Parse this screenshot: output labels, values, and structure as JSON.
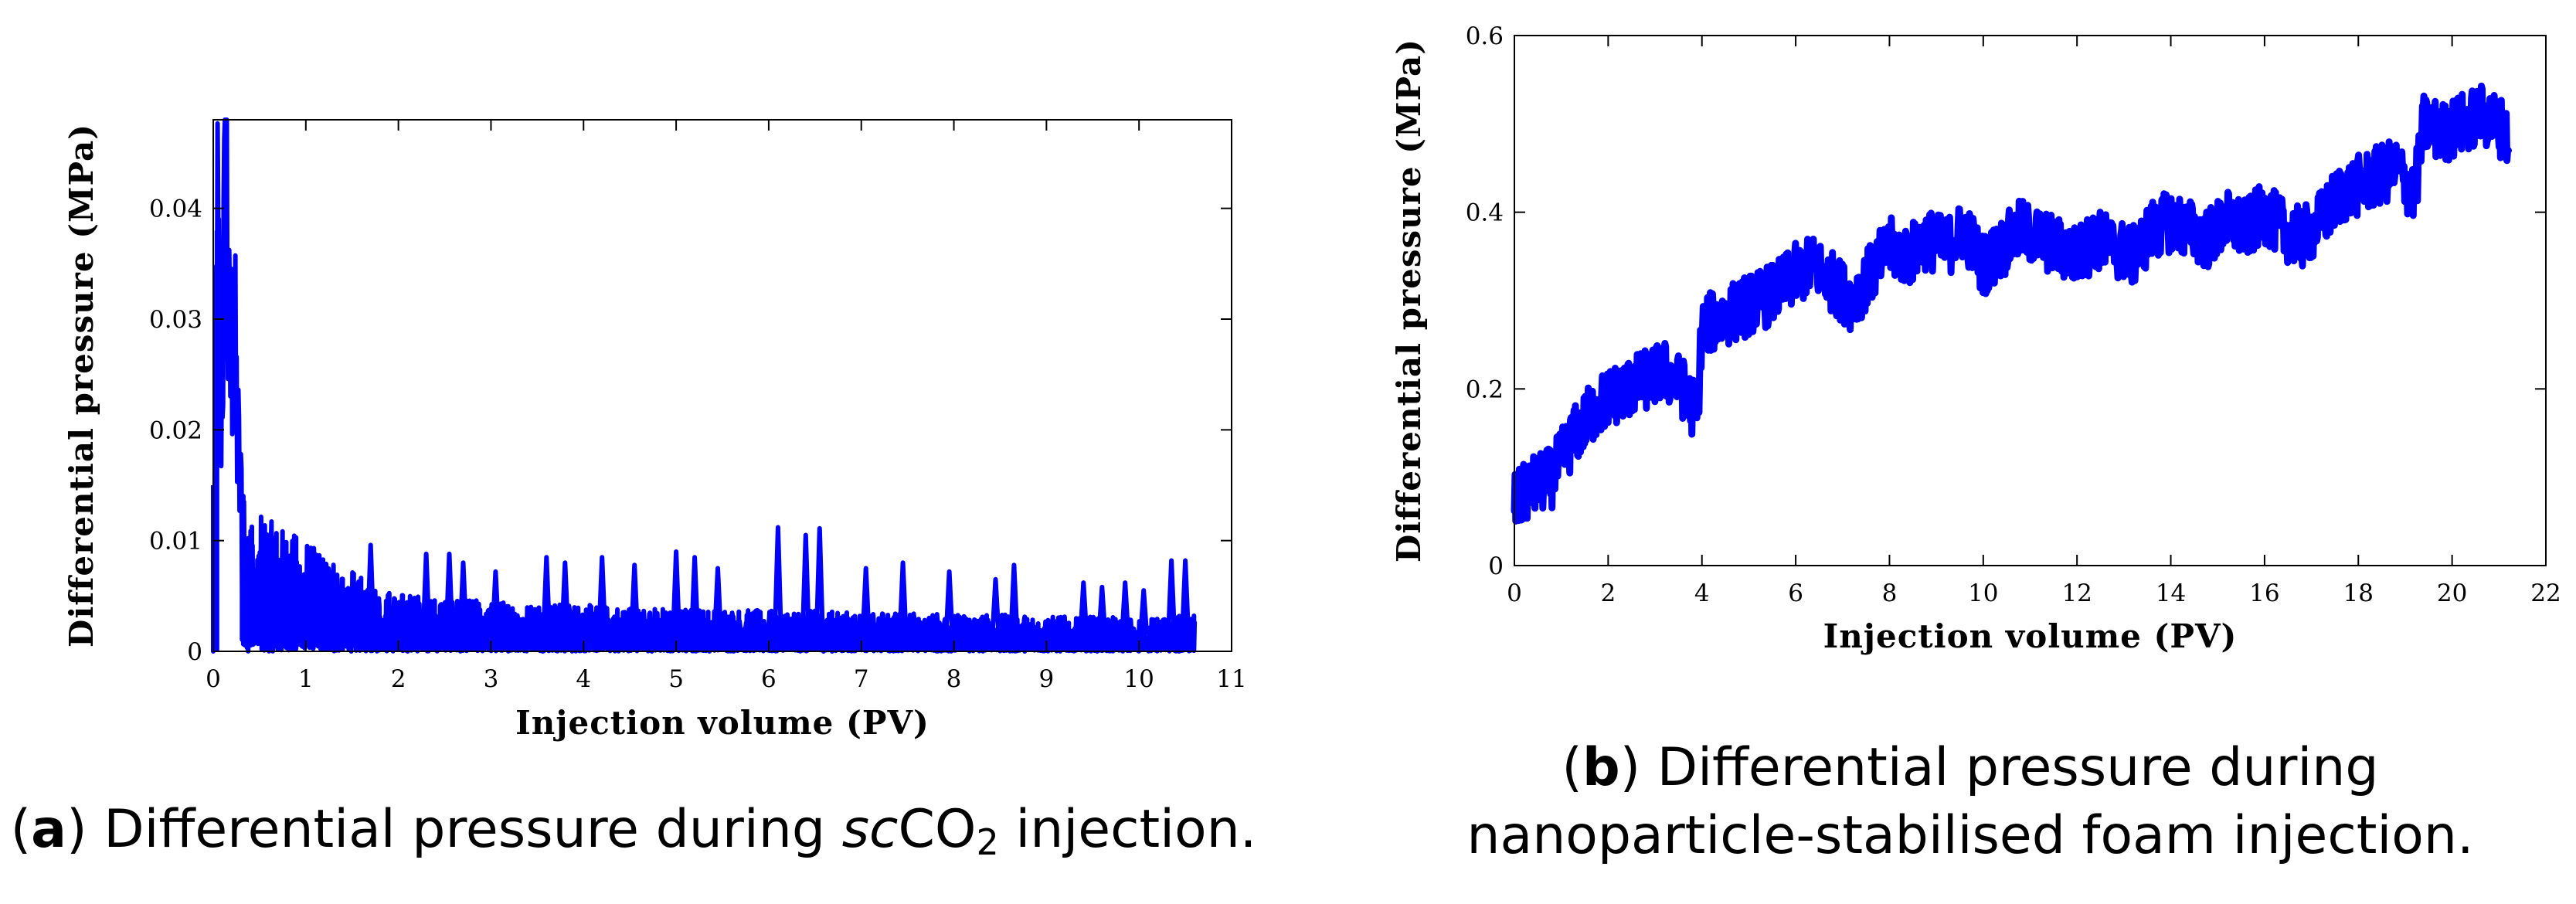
{
  "chart_data": [
    {
      "type": "line",
      "panel": "a",
      "xlabel": "Injection volume (PV)",
      "ylabel": "Differential pressure (MPa)",
      "xlim": [
        0,
        11
      ],
      "ylim": [
        0,
        0.048
      ],
      "xticks": [
        0,
        1,
        2,
        3,
        4,
        5,
        6,
        7,
        8,
        9,
        10,
        11
      ],
      "yticks": [
        0,
        0.01,
        0.02,
        0.03,
        0.04
      ],
      "ytick_labels": [
        "0",
        "0.01",
        "0.02",
        "0.03",
        "0.04"
      ],
      "color": "#0000ff",
      "grid": false,
      "series": [
        {
          "name": "Differential pressure",
          "x": [
            0,
            0.02,
            0.04,
            0.06,
            0.08,
            0.1,
            0.12,
            0.14,
            0.16,
            0.18,
            0.2,
            0.22,
            0.25,
            0.28,
            0.31,
            0.35,
            0.4,
            0.45,
            0.5,
            0.6,
            0.7,
            0.8,
            0.9,
            1.0,
            1.2,
            1.4,
            1.6,
            1.8,
            2.0,
            2.5,
            3.0,
            3.5,
            4.0,
            4.5,
            5.0,
            5.5,
            6.0,
            6.5,
            7.0,
            7.5,
            8.0,
            8.5,
            9.0,
            9.5,
            10.0,
            10.3,
            10.6
          ],
          "y": [
            0,
            0.015,
            0.038,
            0.03,
            0.021,
            0.028,
            0.035,
            0.044,
            0.03,
            0.024,
            0.027,
            0.03,
            0.022,
            0.016,
            0.012,
            0.009,
            0.0075,
            0.0072,
            0.007,
            0.0068,
            0.0065,
            0.0062,
            0.006,
            0.0058,
            0.0052,
            0.0045,
            0.0038,
            0.0032,
            0.003,
            0.0028,
            0.0026,
            0.0025,
            0.0024,
            0.0023,
            0.0022,
            0.0022,
            0.0021,
            0.0021,
            0.002,
            0.002,
            0.0019,
            0.0019,
            0.0018,
            0.0018,
            0.0017,
            0.0017,
            0.002
          ],
          "spikes": [
            {
              "x": 1.7,
              "y": 0.0096
            },
            {
              "x": 2.3,
              "y": 0.0088
            },
            {
              "x": 2.55,
              "y": 0.0088
            },
            {
              "x": 2.7,
              "y": 0.008
            },
            {
              "x": 3.05,
              "y": 0.0072
            },
            {
              "x": 3.6,
              "y": 0.0085
            },
            {
              "x": 3.8,
              "y": 0.008
            },
            {
              "x": 4.2,
              "y": 0.0085
            },
            {
              "x": 4.55,
              "y": 0.0078
            },
            {
              "x": 5.0,
              "y": 0.009
            },
            {
              "x": 5.2,
              "y": 0.0085
            },
            {
              "x": 5.45,
              "y": 0.0075
            },
            {
              "x": 6.1,
              "y": 0.0112
            },
            {
              "x": 6.4,
              "y": 0.0105
            },
            {
              "x": 6.55,
              "y": 0.0111
            },
            {
              "x": 7.05,
              "y": 0.0075
            },
            {
              "x": 7.45,
              "y": 0.008
            },
            {
              "x": 7.95,
              "y": 0.0072
            },
            {
              "x": 8.45,
              "y": 0.0065
            },
            {
              "x": 8.65,
              "y": 0.0078
            },
            {
              "x": 9.4,
              "y": 0.0062
            },
            {
              "x": 9.6,
              "y": 0.0058
            },
            {
              "x": 9.85,
              "y": 0.0062
            },
            {
              "x": 10.05,
              "y": 0.0055
            },
            {
              "x": 10.35,
              "y": 0.0082
            },
            {
              "x": 10.5,
              "y": 0.0082
            }
          ]
        }
      ],
      "caption_label": "a",
      "caption_text": "Differential pressure during",
      "caption_italic": "sc",
      "caption_chem": "CO",
      "caption_sub": "2",
      "caption_tail": "injection."
    },
    {
      "type": "line",
      "panel": "b",
      "xlabel": "Injection volume (PV)",
      "ylabel": "Differential pressure (MPa)",
      "xlim": [
        0,
        22
      ],
      "ylim": [
        0,
        0.6
      ],
      "xticks": [
        0,
        2,
        4,
        6,
        8,
        10,
        12,
        14,
        16,
        18,
        20,
        22
      ],
      "yticks": [
        0,
        0.2,
        0.4,
        0.6
      ],
      "ytick_labels": [
        "0",
        "0.2",
        "0.4",
        "0.6"
      ],
      "color": "#0000ff",
      "grid": false,
      "series": [
        {
          "name": "Differential pressure",
          "x": [
            0,
            0.4,
            0.8,
            1.2,
            1.6,
            2.0,
            2.4,
            2.8,
            3.2,
            3.6,
            3.9,
            4.0,
            4.4,
            4.8,
            5.2,
            5.6,
            6.0,
            6.4,
            6.8,
            7.2,
            7.6,
            8.0,
            8.4,
            8.8,
            9.2,
            9.6,
            10.0,
            10.4,
            10.8,
            11.2,
            11.6,
            12.0,
            12.4,
            12.8,
            13.2,
            13.6,
            14.0,
            14.4,
            14.8,
            15.2,
            15.6,
            16.0,
            16.4,
            16.8,
            17.2,
            17.6,
            18.0,
            18.4,
            18.8,
            19.2,
            19.4,
            19.8,
            20.2,
            20.6,
            21.0,
            21.2
          ],
          "y": [
            0.07,
            0.09,
            0.1,
            0.14,
            0.17,
            0.19,
            0.2,
            0.21,
            0.22,
            0.2,
            0.17,
            0.27,
            0.28,
            0.29,
            0.3,
            0.31,
            0.33,
            0.34,
            0.32,
            0.3,
            0.33,
            0.36,
            0.35,
            0.37,
            0.36,
            0.38,
            0.34,
            0.36,
            0.38,
            0.37,
            0.36,
            0.35,
            0.37,
            0.36,
            0.35,
            0.38,
            0.39,
            0.38,
            0.37,
            0.39,
            0.38,
            0.4,
            0.38,
            0.37,
            0.39,
            0.42,
            0.43,
            0.44,
            0.45,
            0.42,
            0.5,
            0.49,
            0.5,
            0.51,
            0.5,
            0.48
          ],
          "band": 0.035
        }
      ],
      "caption_label": "b",
      "caption_text": "Differential pressure during",
      "caption_line2": "nanoparticle-stabilised foam injection."
    }
  ]
}
